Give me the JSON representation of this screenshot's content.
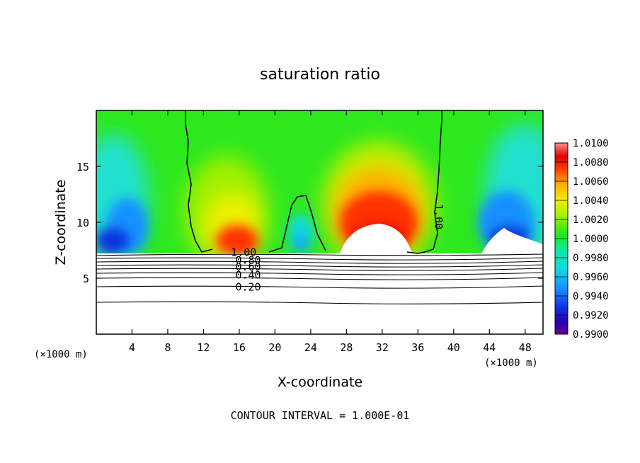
{
  "chart_data": {
    "type": "heatmap",
    "title": "saturation ratio",
    "xlabel": "X-coordinate",
    "ylabel": "Z-coordinate",
    "x_unit_label": "(×1000 m)",
    "x_unit_label_right": "(×1000 m)",
    "xlim": [
      0,
      50
    ],
    "ylim": [
      0,
      20
    ],
    "x_ticks": [
      4,
      8,
      12,
      16,
      20,
      24,
      28,
      32,
      36,
      40,
      44,
      48
    ],
    "x_tick_labels": [
      "4",
      "8",
      "12",
      "16",
      "20",
      "24",
      "28",
      "32",
      "36",
      "40",
      "44",
      "48"
    ],
    "y_ticks": [
      5,
      10,
      15
    ],
    "y_tick_labels": [
      "5",
      "10",
      "15"
    ],
    "colorbar": {
      "min": 0.99,
      "max": 1.01,
      "labels": [
        "1.0100",
        "1.0080",
        "1.0060",
        "1.0040",
        "1.0020",
        "1.0000",
        "0.9980",
        "0.9960",
        "0.9940",
        "0.9920",
        "0.9900"
      ],
      "label_values": [
        1.01,
        1.008,
        1.006,
        1.004,
        1.002,
        1.0,
        0.998,
        0.996,
        0.994,
        0.992,
        0.99
      ]
    },
    "contour_labels": [
      {
        "text": "1.00",
        "x": 38.3,
        "z": 10.5,
        "rotation": 90
      },
      {
        "text": "1.00",
        "x": 16.5,
        "z": 7.3,
        "rotation": 0
      },
      {
        "text": "0.80",
        "x": 17.0,
        "z": 6.6,
        "rotation": 0
      },
      {
        "text": "0.60",
        "x": 17.0,
        "z": 6.0,
        "rotation": 0
      },
      {
        "text": "0.40",
        "x": 17.0,
        "z": 5.3,
        "rotation": 0
      },
      {
        "text": "0.20",
        "x": 17.0,
        "z": 4.2,
        "rotation": 0
      }
    ],
    "footer": "CONTOUR INTERVAL = 1.000E-01",
    "grid": false
  }
}
